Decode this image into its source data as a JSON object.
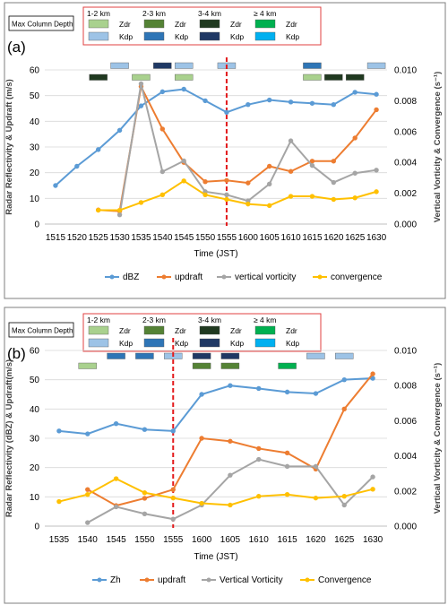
{
  "legend_box": {
    "title": "Max Column Depth",
    "groups": [
      "1-2 km",
      "2-3 km",
      "3-4 km",
      "≥ 4 km"
    ],
    "zdr": "Zdr",
    "kdp": "Kdp",
    "colors": {
      "zdr": [
        "#a9d18e",
        "#548235",
        "#203920",
        "#00b050"
      ],
      "kdp": [
        "#9dc3e6",
        "#2e75b6",
        "#1f3864",
        "#00b0f0"
      ]
    }
  },
  "chart_data": [
    {
      "type": "line",
      "panel_label": "(a)",
      "x": [
        "1515",
        "1520",
        "1525",
        "1530",
        "1535",
        "1540",
        "1545",
        "1550",
        "1555",
        "1600",
        "1605",
        "1610",
        "1615",
        "1620",
        "1625",
        "1630"
      ],
      "xlabel": "Time (JST)",
      "ylabel_left": "Radar Reflectivity & Updraft (m/s)",
      "ylabel_right": "Vertical Vorticity & Convergence (s⁻¹)",
      "ylim_left": [
        0,
        60
      ],
      "ylim_right": [
        0,
        0.01
      ],
      "yticks_left": [
        "0",
        "10",
        "20",
        "30",
        "40",
        "50",
        "60"
      ],
      "yticks_right": [
        "0.000",
        "0.002",
        "0.004",
        "0.006",
        "0.008",
        "0.010"
      ],
      "series": [
        {
          "name": "dBZ",
          "axis": "left",
          "color": "#5b9bd5",
          "values": [
            15,
            22.5,
            29,
            36.5,
            46,
            51.5,
            52.5,
            48,
            43.5,
            46.5,
            48.3,
            47.5,
            47,
            46.5,
            51.3,
            50.5
          ]
        },
        {
          "name": "updraft",
          "axis": "left",
          "color": "#ed7d31",
          "values": [
            null,
            null,
            5.5,
            5,
            53.5,
            37,
            24,
            16.5,
            17,
            16,
            22.5,
            20.5,
            24.5,
            24.5,
            33.5,
            44.5
          ]
        },
        {
          "name": "vertical vorticity",
          "axis": "right",
          "color": "#a5a5a5",
          "values": [
            null,
            null,
            null,
            0.0006,
            0.0091,
            0.0034,
            0.0041,
            0.0021,
            0.0019,
            0.0015,
            0.0026,
            0.0054,
            0.0038,
            0.0027,
            0.0033,
            0.0035
          ]
        },
        {
          "name": "convergence",
          "axis": "right",
          "color": "#ffc000",
          "values": [
            null,
            null,
            0.0009,
            0.0009,
            0.0014,
            0.0019,
            0.0028,
            0.0019,
            0.0016,
            0.0013,
            0.0012,
            0.0018,
            0.0018,
            0.0016,
            0.0017,
            0.0021
          ]
        }
      ],
      "marker_line_x": "1555",
      "column_markers": [
        {
          "x": "1525",
          "zdr": 2
        },
        {
          "x": "1530",
          "kdp": 0
        },
        {
          "x": "1535",
          "zdr": 0
        },
        {
          "x": "1540",
          "kdp": 2
        },
        {
          "x": "1545",
          "zdr": 0,
          "kdp": 0
        },
        {
          "x": "1555",
          "kdp": 0
        },
        {
          "x": "1615",
          "zdr": 0,
          "kdp": 1
        },
        {
          "x": "1620",
          "zdr": 2
        },
        {
          "x": "1625",
          "zdr": 2
        },
        {
          "x": "1630",
          "kdp": 0
        }
      ],
      "legend": [
        "dBZ",
        "updraft",
        "vertical vorticity",
        "convergence"
      ]
    },
    {
      "type": "line",
      "panel_label": "(b)",
      "x": [
        "1535",
        "1540",
        "1545",
        "1550",
        "1555",
        "1600",
        "1605",
        "1610",
        "1615",
        "1620",
        "1625",
        "1630"
      ],
      "xlabel": "Time (JST)",
      "ylabel_left": "Radar Reflectivity (dBZ) & Updraft(m/s)",
      "ylabel_right": "Vertical Vorticity & Convergence (s⁻¹)",
      "ylim_left": [
        0,
        60
      ],
      "ylim_right": [
        0,
        0.01
      ],
      "yticks_left": [
        "0",
        "10",
        "20",
        "30",
        "40",
        "50",
        "60"
      ],
      "yticks_right": [
        "0.000",
        "0.002",
        "0.004",
        "0.006",
        "0.008",
        "0.010"
      ],
      "series": [
        {
          "name": "Zh",
          "axis": "left",
          "color": "#5b9bd5",
          "values": [
            32.5,
            31.5,
            35,
            33,
            32.5,
            45,
            48,
            47,
            45.8,
            45.3,
            50,
            50.5
          ]
        },
        {
          "name": "updraft",
          "axis": "left",
          "color": "#ed7d31",
          "values": [
            null,
            12.5,
            7,
            9.5,
            12.5,
            30,
            29,
            26.5,
            25,
            19.5,
            40,
            52
          ]
        },
        {
          "name": "Vertical Vorticity",
          "axis": "right",
          "color": "#a5a5a5",
          "values": [
            null,
            0.0002,
            0.0011,
            0.0007,
            0.0004,
            0.0012,
            0.0029,
            0.0038,
            0.0034,
            0.0034,
            0.0012,
            0.0028
          ]
        },
        {
          "name": "Convergence",
          "axis": "right",
          "color": "#ffc000",
          "values": [
            0.0014,
            0.0018,
            0.0027,
            0.0019,
            0.0016,
            0.0013,
            0.0012,
            0.0017,
            0.0018,
            0.0016,
            0.0017,
            0.0021
          ]
        }
      ],
      "marker_line_x": "1555",
      "column_markers": [
        {
          "x": "1540",
          "zdr": 0
        },
        {
          "x": "1545",
          "kdp": 1
        },
        {
          "x": "1550",
          "kdp": 1
        },
        {
          "x": "1555",
          "kdp": 0
        },
        {
          "x": "1600",
          "zdr": 1,
          "kdp": 2
        },
        {
          "x": "1605",
          "zdr": 1,
          "kdp": 2
        },
        {
          "x": "1615",
          "zdr": 3
        },
        {
          "x": "1620",
          "kdp": 0
        },
        {
          "x": "1625",
          "kdp": 0
        }
      ],
      "legend": [
        "Zh",
        "updraft",
        "Vertical Vorticity",
        "Convergence"
      ]
    }
  ]
}
